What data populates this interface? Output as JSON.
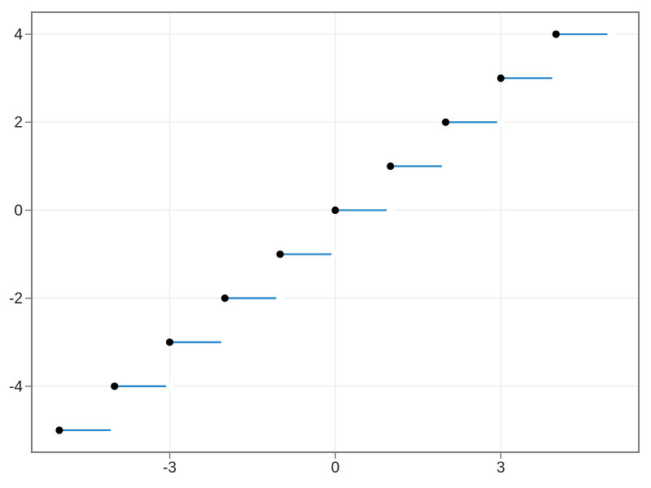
{
  "chart_data": {
    "type": "step-scatter",
    "title": "",
    "xlabel": "",
    "ylabel": "",
    "description": "Step (floor-style) function: closed black point at (n, n) with a horizontal blue segment from (n, n) to (n+1, n), open at the right end",
    "points": [
      [
        -5,
        -5
      ],
      [
        -4,
        -4
      ],
      [
        -3,
        -3
      ],
      [
        -2,
        -2
      ],
      [
        -1,
        -1
      ],
      [
        0,
        0
      ],
      [
        1,
        1
      ],
      [
        2,
        2
      ],
      [
        3,
        3
      ],
      [
        4,
        4
      ]
    ],
    "segments": [
      {
        "x0": -5,
        "x1": -4,
        "y": -5
      },
      {
        "x0": -4,
        "x1": -3,
        "y": -4
      },
      {
        "x0": -3,
        "x1": -2,
        "y": -3
      },
      {
        "x0": -2,
        "x1": -1,
        "y": -2
      },
      {
        "x0": -1,
        "x1": 0,
        "y": -1
      },
      {
        "x0": 0,
        "x1": 1,
        "y": 0
      },
      {
        "x0": 1,
        "x1": 2,
        "y": 1
      },
      {
        "x0": 2,
        "x1": 3,
        "y": 2
      },
      {
        "x0": 3,
        "x1": 4,
        "y": 3
      },
      {
        "x0": 4,
        "x1": 5,
        "y": 4
      }
    ],
    "open_right_ends": true,
    "xlim": [
      -5.5,
      5.5
    ],
    "ylim": [
      -5.5,
      4.5
    ],
    "xticks": {
      "values": [
        -3,
        0,
        3
      ],
      "labels": [
        "-3",
        "0",
        "3"
      ]
    },
    "yticks": {
      "values": [
        -4,
        -2,
        0,
        2,
        4
      ],
      "labels": [
        "-4",
        "-2",
        "0",
        "2",
        "4"
      ]
    },
    "grid": true,
    "legend": null,
    "colors": {
      "line": "#2185c8",
      "marker": "#000000",
      "frame": "#7d7d7d",
      "grid": "#ececec",
      "tick": "#7d7d7d",
      "tick_label": "#1c1c1c",
      "background": "#ffffff"
    }
  }
}
